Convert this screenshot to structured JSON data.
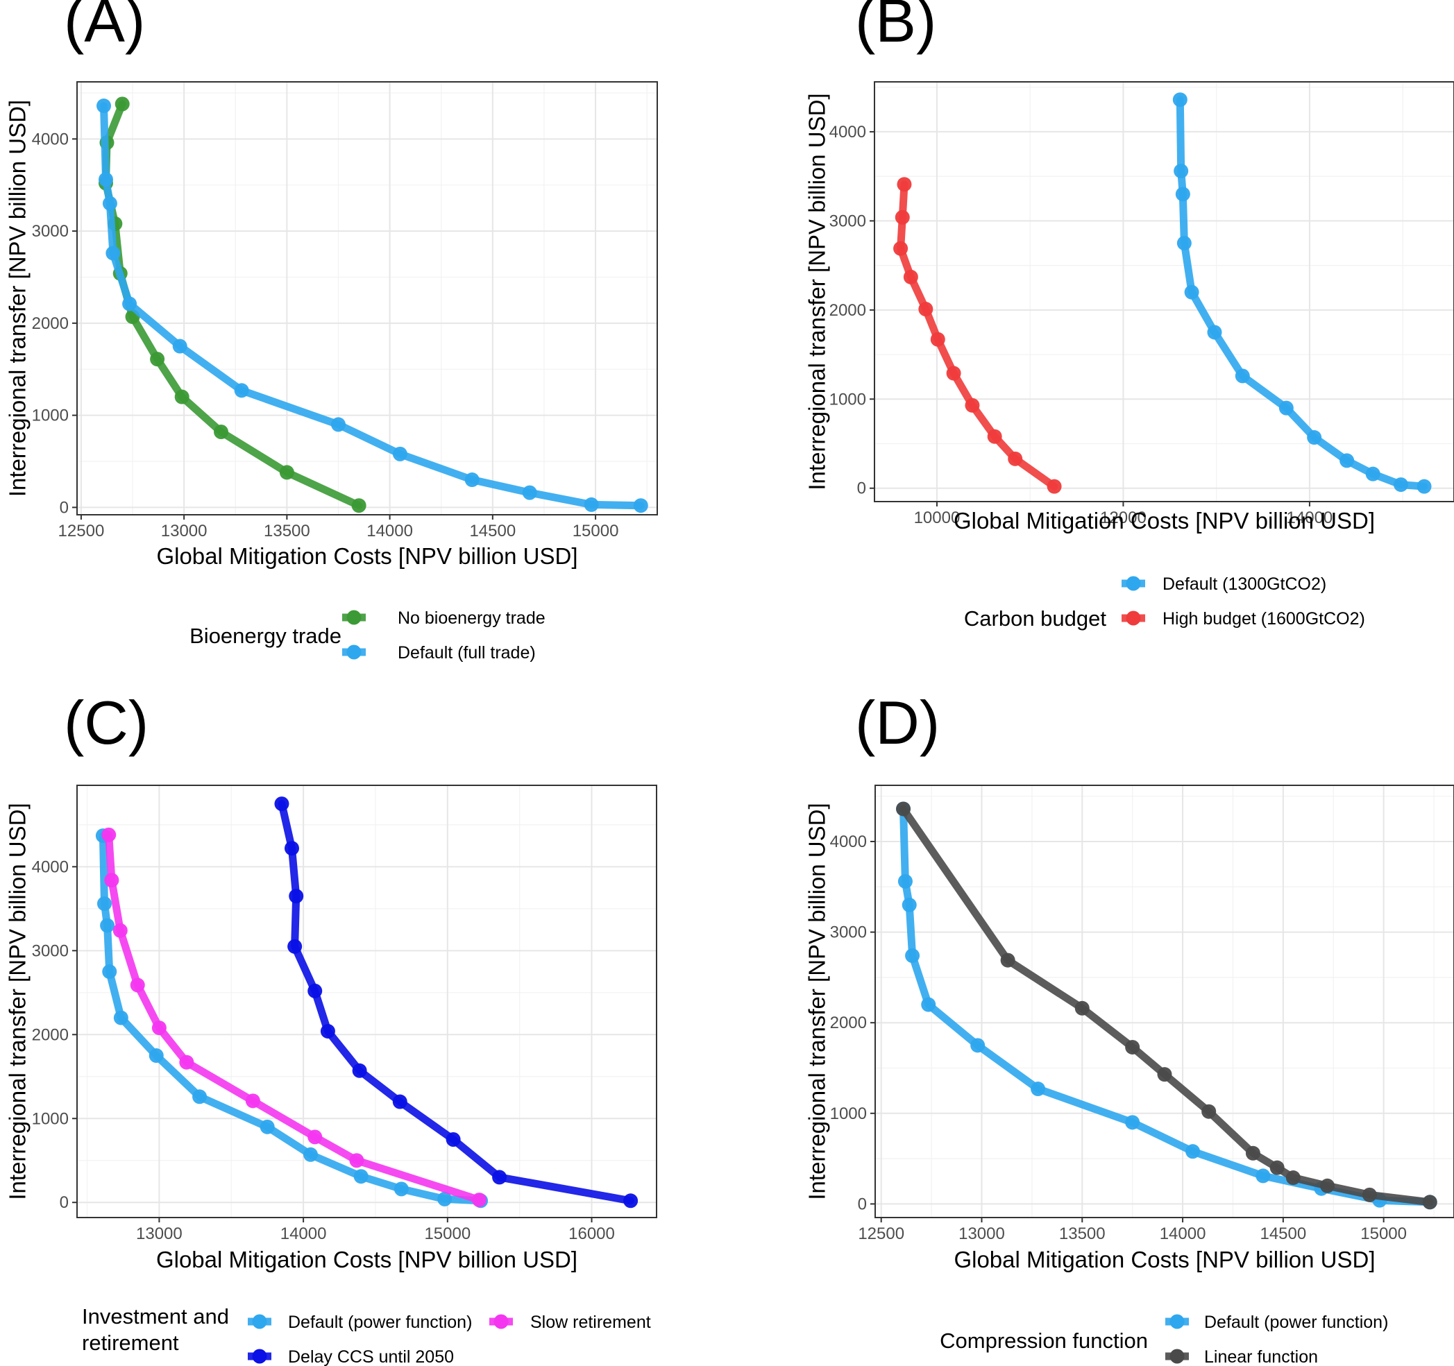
{
  "chart_data": [
    {
      "panel": "(A)",
      "type": "line",
      "xlabel": "Global Mitigation Costs [NPV billion USD]",
      "ylabel": "Interregional transfer [NPV billion USD]",
      "xlim": [
        12480,
        15300
      ],
      "ylim": [
        -80,
        4620
      ],
      "xticks": [
        12500,
        13000,
        13500,
        14000,
        14500,
        15000
      ],
      "yticks": [
        0,
        1000,
        2000,
        3000,
        4000
      ],
      "legend_title": "Bioenergy trade",
      "legend_layout": "column",
      "series": [
        {
          "name": "No bioenergy trade",
          "color": "#3b9a35",
          "points": [
            [
              12700,
              4380
            ],
            [
              12625,
              3960
            ],
            [
              12620,
              3520
            ],
            [
              12665,
              3080
            ],
            [
              12690,
              2540
            ],
            [
              12750,
              2070
            ],
            [
              12870,
              1610
            ],
            [
              12990,
              1200
            ],
            [
              13180,
              820
            ],
            [
              13500,
              380
            ],
            [
              13850,
              20
            ]
          ]
        },
        {
          "name": "Default (full trade)",
          "color": "#2ea7ee",
          "points": [
            [
              12610,
              4360
            ],
            [
              12620,
              3560
            ],
            [
              12640,
              3300
            ],
            [
              12655,
              2760
            ],
            [
              12735,
              2210
            ],
            [
              12980,
              1750
            ],
            [
              13280,
              1270
            ],
            [
              13750,
              900
            ],
            [
              14050,
              580
            ],
            [
              14400,
              300
            ],
            [
              14680,
              160
            ],
            [
              14980,
              30
            ],
            [
              15220,
              20
            ]
          ]
        }
      ]
    },
    {
      "panel": "(B)",
      "type": "line",
      "xlabel": "Global Mitigation Costs [NPV billion USD]",
      "ylabel": "Interregional transfer [NPV billion USD]",
      "xlim": [
        9330,
        15550
      ],
      "ylim": [
        -150,
        4560
      ],
      "xticks": [
        10000,
        12000,
        14000
      ],
      "yticks": [
        0,
        1000,
        2000,
        3000,
        4000
      ],
      "legend_title": "Carbon budget",
      "legend_layout": "column",
      "series": [
        {
          "name": "Default (1300GtCO2)",
          "color": "#2ea7ee",
          "points": [
            [
              12610,
              4360
            ],
            [
              12620,
              3560
            ],
            [
              12640,
              3300
            ],
            [
              12655,
              2750
            ],
            [
              12735,
              2200
            ],
            [
              12980,
              1750
            ],
            [
              13280,
              1260
            ],
            [
              13750,
              900
            ],
            [
              14050,
              570
            ],
            [
              14400,
              310
            ],
            [
              14680,
              160
            ],
            [
              14980,
              40
            ],
            [
              15230,
              20
            ]
          ]
        },
        {
          "name": "High budget (1600GtCO2)",
          "color": "#ef3b3b",
          "points": [
            [
              9650,
              3410
            ],
            [
              9630,
              3040
            ],
            [
              9610,
              2690
            ],
            [
              9720,
              2370
            ],
            [
              9880,
              2010
            ],
            [
              10010,
              1670
            ],
            [
              10180,
              1290
            ],
            [
              10380,
              930
            ],
            [
              10620,
              580
            ],
            [
              10840,
              330
            ],
            [
              11260,
              20
            ]
          ]
        }
      ]
    },
    {
      "panel": "(C)",
      "type": "line",
      "xlabel": "Global Mitigation Costs [NPV billion USD]",
      "ylabel": "Interregional transfer [NPV billion USD]",
      "xlim": [
        12430,
        16450
      ],
      "ylim": [
        -180,
        4970
      ],
      "xticks": [
        13000,
        14000,
        15000,
        16000
      ],
      "yticks": [
        0,
        1000,
        2000,
        3000,
        4000
      ],
      "legend_title": "Investment and\nretirement",
      "legend_layout": "grid",
      "series": [
        {
          "name": "Default (power function)",
          "color": "#2ea7ee",
          "points": [
            [
              12610,
              4370
            ],
            [
              12620,
              3560
            ],
            [
              12640,
              3300
            ],
            [
              12655,
              2750
            ],
            [
              12735,
              2200
            ],
            [
              12980,
              1750
            ],
            [
              13280,
              1260
            ],
            [
              13750,
              900
            ],
            [
              14050,
              570
            ],
            [
              14400,
              310
            ],
            [
              14680,
              160
            ],
            [
              14980,
              40
            ],
            [
              15230,
              20
            ]
          ]
        },
        {
          "name": "Delay CCS until 2050",
          "color": "#0a10e6",
          "points": [
            [
              13850,
              4750
            ],
            [
              13920,
              4220
            ],
            [
              13950,
              3650
            ],
            [
              13940,
              3050
            ],
            [
              14080,
              2520
            ],
            [
              14170,
              2040
            ],
            [
              14390,
              1570
            ],
            [
              14670,
              1200
            ],
            [
              15040,
              750
            ],
            [
              15360,
              300
            ],
            [
              16270,
              20
            ]
          ]
        },
        {
          "name": "Slow retirement",
          "color": "#f436f0",
          "points": [
            [
              12650,
              4380
            ],
            [
              12670,
              3840
            ],
            [
              12730,
              3240
            ],
            [
              12850,
              2590
            ],
            [
              13000,
              2080
            ],
            [
              13190,
              1670
            ],
            [
              13650,
              1210
            ],
            [
              14080,
              780
            ],
            [
              14370,
              500
            ],
            [
              15220,
              30
            ]
          ]
        }
      ]
    },
    {
      "panel": "(D)",
      "type": "line",
      "xlabel": "Global Mitigation Costs [NPV billion USD]",
      "ylabel": "Interregional transfer [NPV billion USD]",
      "xlim": [
        12470,
        15350
      ],
      "ylim": [
        -150,
        4620
      ],
      "xticks": [
        12500,
        13000,
        13500,
        14000,
        14500,
        15000
      ],
      "yticks": [
        0,
        1000,
        2000,
        3000,
        4000
      ],
      "legend_title": "Compression function",
      "legend_layout": "column",
      "series": [
        {
          "name": "Default (power function)",
          "color": "#2ea7ee",
          "points": [
            [
              12610,
              4360
            ],
            [
              12620,
              3560
            ],
            [
              12640,
              3300
            ],
            [
              12655,
              2740
            ],
            [
              12735,
              2200
            ],
            [
              12980,
              1750
            ],
            [
              13280,
              1270
            ],
            [
              13750,
              900
            ],
            [
              14050,
              580
            ],
            [
              14400,
              310
            ],
            [
              14690,
              170
            ],
            [
              14980,
              40
            ],
            [
              15230,
              20
            ]
          ]
        },
        {
          "name": "Linear function",
          "color": "#4a4a4a",
          "points": [
            [
              12610,
              4360
            ],
            [
              13130,
              2690
            ],
            [
              13500,
              2160
            ],
            [
              13750,
              1730
            ],
            [
              13910,
              1430
            ],
            [
              14130,
              1020
            ],
            [
              14350,
              560
            ],
            [
              14470,
              400
            ],
            [
              14550,
              290
            ],
            [
              14720,
              200
            ],
            [
              14930,
              100
            ],
            [
              15230,
              20
            ]
          ]
        }
      ]
    }
  ]
}
